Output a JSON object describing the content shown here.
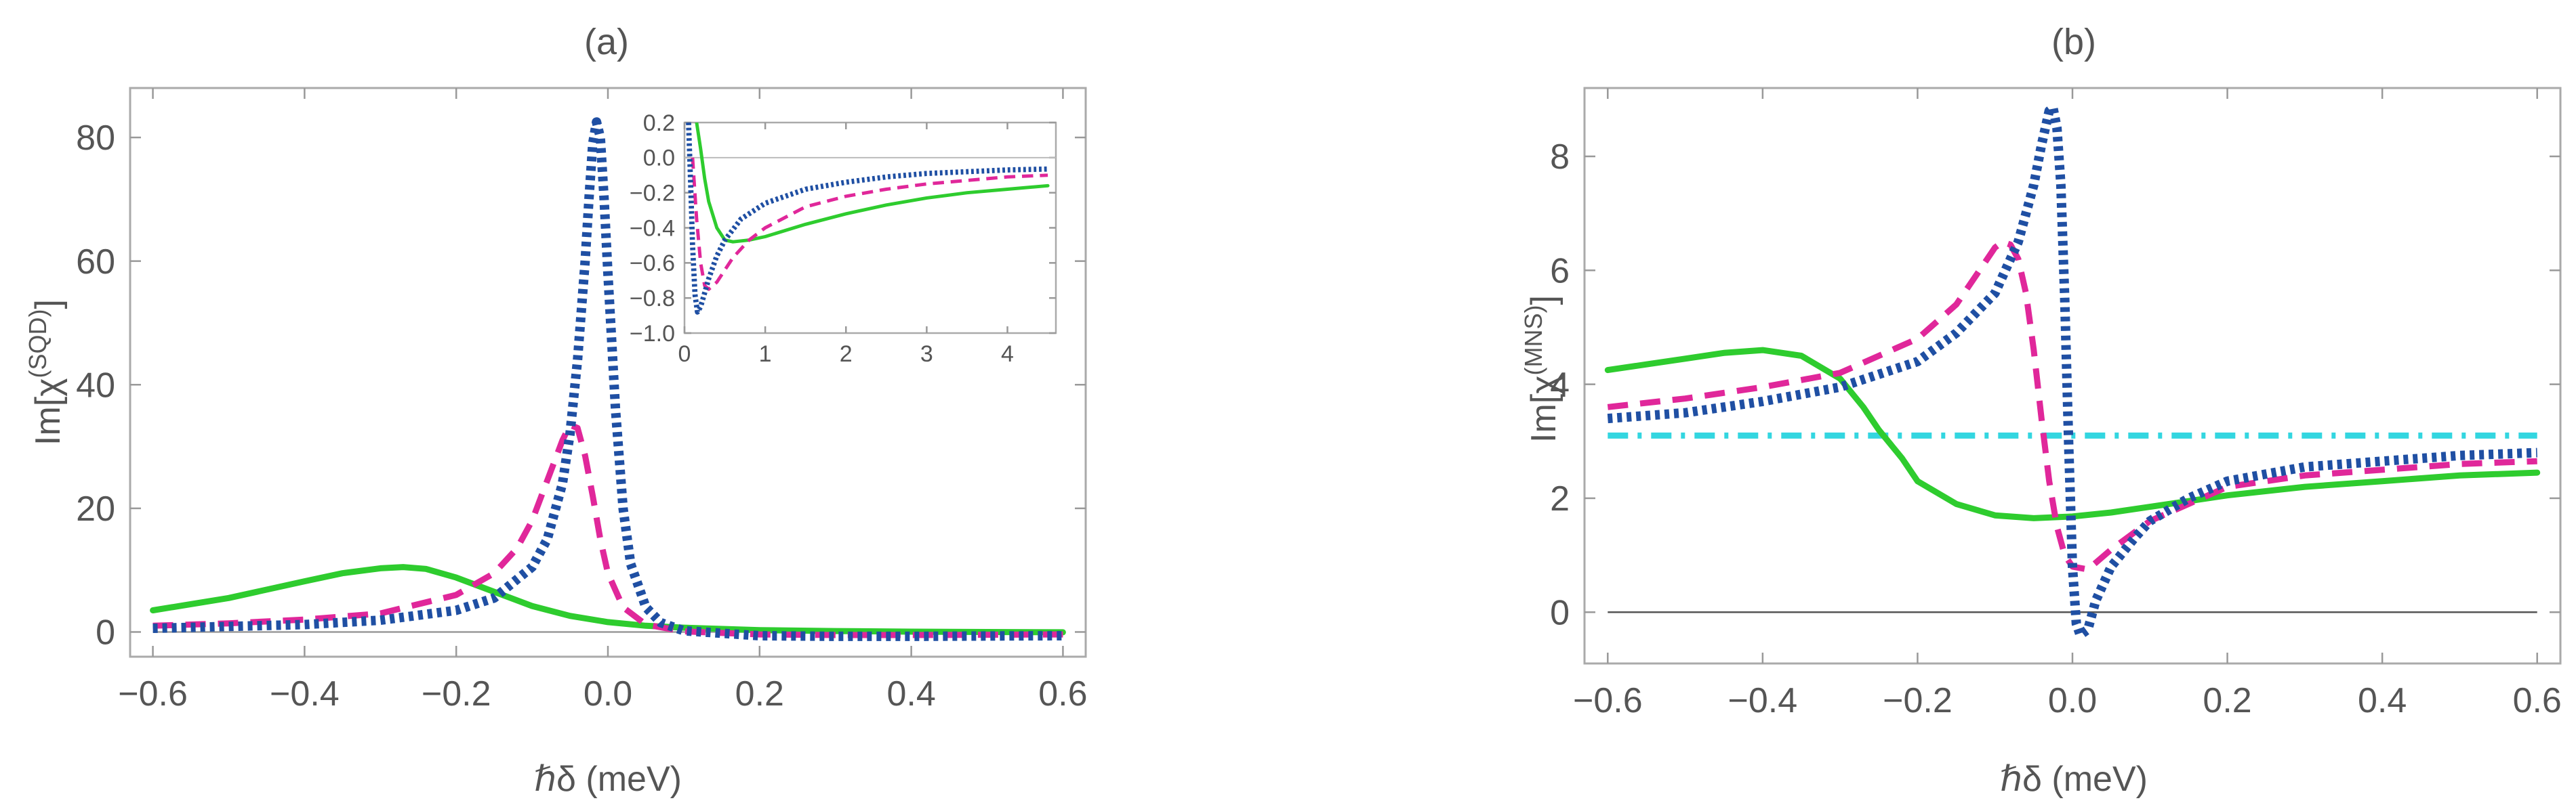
{
  "chart_data": [
    {
      "type": "line",
      "title": "(a)",
      "xlabel": "ℏδ (meV)",
      "ylabel_base": "Im[χ",
      "ylabel_sup": "(SQD)",
      "ylabel_end": "]",
      "xlim": [
        -0.63,
        0.63
      ],
      "ylim": [
        -4,
        88
      ],
      "xticks": [
        -0.6,
        -0.4,
        -0.2,
        0.0,
        0.2,
        0.4,
        0.6
      ],
      "xtick_labels": [
        "−0.6",
        "−0.4",
        "−0.2",
        "0.0",
        "0.2",
        "0.4",
        "0.6"
      ],
      "yticks": [
        0,
        20,
        40,
        60,
        80
      ],
      "ytick_labels": [
        "0",
        "20",
        "40",
        "60",
        "80"
      ],
      "series": [
        {
          "name": "green",
          "color": "#2ecc2e",
          "style": "solid",
          "x": [
            -0.6,
            -0.5,
            -0.4,
            -0.35,
            -0.3,
            -0.27,
            -0.24,
            -0.2,
            -0.15,
            -0.1,
            -0.05,
            0.0,
            0.05,
            0.1,
            0.2,
            0.3,
            0.4,
            0.5,
            0.6
          ],
          "y": [
            3.5,
            5.5,
            8.2,
            9.5,
            10.3,
            10.5,
            10.2,
            8.8,
            6.5,
            4.2,
            2.6,
            1.6,
            1.0,
            0.7,
            0.3,
            0.15,
            0.05,
            0.0,
            -0.05
          ]
        },
        {
          "name": "magenta",
          "color": "#e0279a",
          "style": "dashed",
          "x": [
            -0.6,
            -0.5,
            -0.4,
            -0.3,
            -0.2,
            -0.15,
            -0.12,
            -0.1,
            -0.08,
            -0.06,
            -0.05,
            -0.04,
            -0.03,
            -0.02,
            -0.01,
            0.0,
            0.02,
            0.05,
            0.1,
            0.2,
            0.3,
            0.4,
            0.5,
            0.6
          ],
          "y": [
            1.0,
            1.4,
            2.0,
            3.0,
            6.0,
            9.5,
            13.5,
            18.0,
            24.5,
            31.0,
            33.5,
            33.0,
            28.5,
            22.0,
            15.0,
            9.5,
            4.0,
            1.2,
            0.1,
            -0.4,
            -0.5,
            -0.5,
            -0.45,
            -0.4
          ]
        },
        {
          "name": "blue",
          "color": "#1f4fa3",
          "style": "dotted",
          "x": [
            -0.6,
            -0.5,
            -0.4,
            -0.3,
            -0.2,
            -0.15,
            -0.1,
            -0.08,
            -0.06,
            -0.05,
            -0.04,
            -0.03,
            -0.025,
            -0.02,
            -0.015,
            -0.01,
            -0.005,
            0.0,
            0.01,
            0.02,
            0.03,
            0.05,
            0.07,
            0.1,
            0.2,
            0.3,
            0.4,
            0.5,
            0.6
          ],
          "y": [
            0.6,
            0.9,
            1.2,
            1.9,
            3.5,
            5.5,
            10.5,
            15.0,
            24.0,
            32.0,
            44.0,
            60.0,
            70.0,
            79.0,
            82.5,
            80.0,
            70.0,
            58.0,
            36.0,
            20.0,
            11.0,
            4.0,
            1.5,
            0.2,
            -0.6,
            -0.7,
            -0.7,
            -0.65,
            -0.6
          ]
        }
      ],
      "inset": {
        "xlim": [
          0,
          4.6
        ],
        "ylim": [
          -1.0,
          0.2
        ],
        "xticks": [
          0,
          1,
          2,
          3,
          4
        ],
        "xtick_labels": [
          "0",
          "1",
          "2",
          "3",
          "4"
        ],
        "yticks": [
          0.2,
          0.0,
          -0.2,
          -0.4,
          -0.6,
          -0.8,
          -1.0
        ],
        "ytick_labels": [
          "0.2",
          "0.0",
          "−0.2",
          "−0.4",
          "−0.6",
          "−0.8",
          "−1.0"
        ],
        "series": [
          {
            "name": "green",
            "color": "#2ecc2e",
            "style": "solid",
            "x": [
              0.15,
              0.2,
              0.25,
              0.3,
              0.4,
              0.5,
              0.6,
              0.8,
              1.0,
              1.5,
              2.0,
              2.5,
              3.0,
              3.5,
              4.0,
              4.5
            ],
            "y": [
              0.2,
              0.05,
              -0.12,
              -0.25,
              -0.4,
              -0.47,
              -0.48,
              -0.47,
              -0.45,
              -0.38,
              -0.32,
              -0.27,
              -0.23,
              -0.2,
              -0.18,
              -0.16
            ]
          },
          {
            "name": "magenta",
            "color": "#e0279a",
            "style": "dashed",
            "x": [
              0.1,
              0.15,
              0.2,
              0.25,
              0.3,
              0.4,
              0.5,
              0.6,
              0.8,
              1.0,
              1.5,
              2.0,
              2.5,
              3.0,
              3.5,
              4.0,
              4.5
            ],
            "y": [
              0.0,
              -0.35,
              -0.6,
              -0.73,
              -0.75,
              -0.71,
              -0.64,
              -0.57,
              -0.47,
              -0.4,
              -0.28,
              -0.22,
              -0.18,
              -0.15,
              -0.13,
              -0.11,
              -0.1
            ]
          },
          {
            "name": "blue",
            "color": "#1f4fa3",
            "style": "dotted",
            "x": [
              0.05,
              0.08,
              0.1,
              0.13,
              0.16,
              0.2,
              0.25,
              0.3,
              0.4,
              0.5,
              0.7,
              1.0,
              1.5,
              2.0,
              2.5,
              3.0,
              3.5,
              4.0,
              4.5
            ],
            "y": [
              0.2,
              -0.2,
              -0.5,
              -0.78,
              -0.88,
              -0.85,
              -0.77,
              -0.69,
              -0.56,
              -0.47,
              -0.35,
              -0.26,
              -0.18,
              -0.14,
              -0.11,
              -0.09,
              -0.08,
              -0.07,
              -0.065
            ]
          }
        ]
      }
    },
    {
      "type": "line",
      "title": "(b)",
      "xlabel": "ℏδ (meV)",
      "ylabel_base": "Im[χ",
      "ylabel_sup": "(MNS)",
      "ylabel_end": "]",
      "xlim": [
        -0.63,
        0.63
      ],
      "ylim": [
        -0.9,
        9.2
      ],
      "xticks": [
        -0.6,
        -0.4,
        -0.2,
        0.0,
        0.2,
        0.4,
        0.6
      ],
      "xtick_labels": [
        "−0.6",
        "−0.4",
        "−0.2",
        "0.0",
        "0.2",
        "0.4",
        "0.6"
      ],
      "yticks": [
        0,
        2,
        4,
        6,
        8
      ],
      "ytick_labels": [
        "0",
        "2",
        "4",
        "6",
        "8"
      ],
      "series": [
        {
          "name": "cyan",
          "color": "#33d6e0",
          "style": "dashdot",
          "x": [
            -0.6,
            0.6
          ],
          "y": [
            3.1,
            3.1
          ]
        },
        {
          "name": "green",
          "color": "#2ecc2e",
          "style": "solid",
          "x": [
            -0.6,
            -0.55,
            -0.5,
            -0.45,
            -0.4,
            -0.35,
            -0.3,
            -0.27,
            -0.25,
            -0.22,
            -0.2,
            -0.15,
            -0.1,
            -0.05,
            0.0,
            0.05,
            0.1,
            0.2,
            0.3,
            0.4,
            0.5,
            0.6
          ],
          "y": [
            4.25,
            4.35,
            4.45,
            4.55,
            4.6,
            4.5,
            4.1,
            3.6,
            3.2,
            2.7,
            2.3,
            1.9,
            1.7,
            1.65,
            1.68,
            1.75,
            1.85,
            2.05,
            2.2,
            2.3,
            2.4,
            2.45
          ]
        },
        {
          "name": "magenta",
          "color": "#e0279a",
          "style": "dashed",
          "x": [
            -0.6,
            -0.5,
            -0.4,
            -0.3,
            -0.2,
            -0.15,
            -0.12,
            -0.1,
            -0.09,
            -0.08,
            -0.07,
            -0.06,
            -0.05,
            -0.04,
            -0.03,
            -0.02,
            -0.01,
            0.0,
            0.02,
            0.05,
            0.1,
            0.2,
            0.3,
            0.4,
            0.5,
            0.6
          ],
          "y": [
            3.6,
            3.75,
            3.95,
            4.2,
            4.8,
            5.4,
            6.0,
            6.4,
            6.5,
            6.45,
            6.2,
            5.6,
            4.6,
            3.4,
            2.3,
            1.5,
            1.0,
            0.8,
            0.75,
            1.1,
            1.6,
            2.2,
            2.4,
            2.5,
            2.6,
            2.65
          ]
        },
        {
          "name": "blue",
          "color": "#1f4fa3",
          "style": "dotted",
          "x": [
            -0.6,
            -0.5,
            -0.4,
            -0.3,
            -0.2,
            -0.15,
            -0.1,
            -0.07,
            -0.05,
            -0.04,
            -0.03,
            -0.025,
            -0.02,
            -0.015,
            -0.01,
            -0.005,
            0.0,
            0.005,
            0.01,
            0.02,
            0.03,
            0.05,
            0.08,
            0.1,
            0.15,
            0.2,
            0.3,
            0.4,
            0.5,
            0.6
          ],
          "y": [
            3.4,
            3.5,
            3.7,
            3.95,
            4.4,
            4.9,
            5.6,
            6.5,
            7.5,
            8.2,
            8.8,
            8.85,
            8.5,
            7.5,
            5.5,
            3.0,
            0.8,
            -0.2,
            -0.4,
            -0.3,
            0.2,
            0.8,
            1.3,
            1.6,
            2.0,
            2.3,
            2.55,
            2.65,
            2.75,
            2.8
          ]
        }
      ]
    }
  ]
}
